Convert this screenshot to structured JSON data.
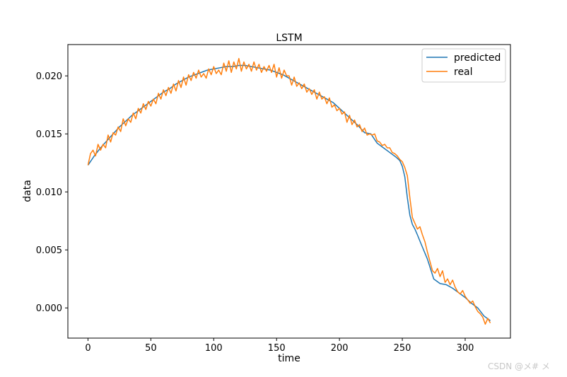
{
  "chart_data": {
    "type": "line",
    "title": "LSTM",
    "xlabel": "time",
    "ylabel": "data",
    "xlim": [
      -16,
      336
    ],
    "ylim": [
      -0.0026,
      0.0227
    ],
    "xticks": [
      0,
      50,
      100,
      150,
      200,
      250,
      300
    ],
    "yticks": [
      0.0,
      0.005,
      0.01,
      0.015,
      0.02
    ],
    "ytick_labels": [
      "0.000",
      "0.005",
      "0.010",
      "0.015",
      "0.020"
    ],
    "grid": false,
    "legend_position": "top-right",
    "series": [
      {
        "name": "predicted",
        "color": "#1f77b4",
        "x": [
          0,
          5,
          10,
          15,
          20,
          25,
          30,
          35,
          40,
          45,
          50,
          55,
          60,
          65,
          70,
          75,
          80,
          85,
          90,
          95,
          100,
          105,
          110,
          115,
          120,
          125,
          130,
          135,
          140,
          145,
          150,
          155,
          160,
          165,
          170,
          175,
          180,
          185,
          190,
          195,
          200,
          205,
          210,
          215,
          220,
          225,
          230,
          235,
          240,
          245,
          248,
          250,
          252,
          254,
          256,
          258,
          260,
          262,
          265,
          270,
          275,
          280,
          285,
          290,
          295,
          300,
          305,
          310,
          315,
          320
        ],
        "y": [
          0.0123,
          0.0131,
          0.0138,
          0.0144,
          0.015,
          0.0156,
          0.0161,
          0.0166,
          0.017,
          0.0174,
          0.0178,
          0.0182,
          0.0186,
          0.0189,
          0.0193,
          0.0196,
          0.0199,
          0.0201,
          0.0203,
          0.0205,
          0.0206,
          0.0207,
          0.0208,
          0.0208,
          0.0209,
          0.0209,
          0.0208,
          0.0207,
          0.0206,
          0.0205,
          0.0203,
          0.0201,
          0.0198,
          0.0195,
          0.0192,
          0.0189,
          0.0186,
          0.0183,
          0.018,
          0.0177,
          0.0172,
          0.0167,
          0.0162,
          0.0157,
          0.0151,
          0.015,
          0.0142,
          0.0138,
          0.0134,
          0.013,
          0.0127,
          0.0122,
          0.0113,
          0.0095,
          0.008,
          0.0072,
          0.0068,
          0.0063,
          0.0055,
          0.0042,
          0.0025,
          0.0021,
          0.002,
          0.0017,
          0.0013,
          0.0009,
          0.0004,
          0.0,
          -0.0007,
          -0.0011
        ]
      },
      {
        "name": "real",
        "color": "#ff7f0e",
        "x": [
          0,
          2,
          4,
          6,
          8,
          10,
          12,
          14,
          16,
          18,
          20,
          22,
          24,
          26,
          28,
          30,
          32,
          34,
          36,
          38,
          40,
          42,
          44,
          46,
          48,
          50,
          52,
          54,
          56,
          58,
          60,
          62,
          64,
          66,
          68,
          70,
          72,
          74,
          76,
          78,
          80,
          82,
          84,
          86,
          88,
          90,
          92,
          94,
          96,
          98,
          100,
          102,
          104,
          106,
          108,
          110,
          112,
          114,
          116,
          118,
          120,
          122,
          124,
          126,
          128,
          130,
          132,
          134,
          136,
          138,
          140,
          142,
          144,
          146,
          148,
          150,
          152,
          154,
          156,
          158,
          160,
          162,
          164,
          166,
          168,
          170,
          172,
          174,
          176,
          178,
          180,
          182,
          184,
          186,
          188,
          190,
          192,
          194,
          196,
          198,
          200,
          202,
          204,
          206,
          208,
          210,
          212,
          214,
          216,
          218,
          220,
          222,
          224,
          226,
          228,
          230,
          232,
          234,
          236,
          238,
          240,
          242,
          244,
          246,
          248,
          250,
          252,
          254,
          256,
          258,
          260,
          262,
          264,
          266,
          268,
          270,
          272,
          274,
          276,
          278,
          280,
          282,
          284,
          286,
          288,
          290,
          292,
          294,
          296,
          298,
          300,
          302,
          304,
          306,
          308,
          310,
          312,
          314,
          316,
          318,
          320
        ],
        "y": [
          0.0123,
          0.0133,
          0.0136,
          0.0131,
          0.0141,
          0.0136,
          0.0141,
          0.0138,
          0.0149,
          0.0143,
          0.0151,
          0.0149,
          0.0156,
          0.0152,
          0.0163,
          0.0157,
          0.0163,
          0.016,
          0.0168,
          0.0163,
          0.0172,
          0.0168,
          0.0176,
          0.0171,
          0.0178,
          0.0174,
          0.018,
          0.0176,
          0.0185,
          0.018,
          0.0188,
          0.0183,
          0.019,
          0.0185,
          0.0193,
          0.0187,
          0.0196,
          0.019,
          0.0199,
          0.0192,
          0.0201,
          0.0196,
          0.0203,
          0.0198,
          0.0205,
          0.0199,
          0.0202,
          0.0198,
          0.0206,
          0.0201,
          0.0208,
          0.0202,
          0.0205,
          0.0201,
          0.0211,
          0.0204,
          0.0213,
          0.0203,
          0.0212,
          0.0206,
          0.0215,
          0.0204,
          0.0212,
          0.0206,
          0.021,
          0.0204,
          0.0212,
          0.0205,
          0.021,
          0.0203,
          0.0208,
          0.0204,
          0.0209,
          0.0203,
          0.021,
          0.0199,
          0.0207,
          0.0198,
          0.0205,
          0.02,
          0.02,
          0.0192,
          0.0199,
          0.0191,
          0.0194,
          0.0189,
          0.0193,
          0.0186,
          0.0189,
          0.0184,
          0.0188,
          0.018,
          0.0186,
          0.018,
          0.0182,
          0.0176,
          0.0181,
          0.0173,
          0.0175,
          0.017,
          0.0172,
          0.0167,
          0.0169,
          0.016,
          0.0166,
          0.0158,
          0.0162,
          0.0156,
          0.0158,
          0.0152,
          0.0155,
          0.0149,
          0.015,
          0.0149,
          0.015,
          0.0144,
          0.0143,
          0.014,
          0.0141,
          0.0138,
          0.0138,
          0.0134,
          0.0133,
          0.0131,
          0.0128,
          0.0126,
          0.0121,
          0.0114,
          0.0095,
          0.0078,
          0.0073,
          0.0068,
          0.007,
          0.0063,
          0.0057,
          0.0048,
          0.004,
          0.0032,
          0.003,
          0.0034,
          0.0027,
          0.0032,
          0.0022,
          0.0025,
          0.002,
          0.0024,
          0.0018,
          0.0014,
          0.0012,
          0.0015,
          0.001,
          0.0007,
          0.0004,
          0.0006,
          0.0001,
          -0.0003,
          -0.0005,
          -0.0008,
          -0.0014,
          -0.0009,
          -0.0013
        ]
      }
    ]
  },
  "watermark": "CSDN @メ# メ"
}
